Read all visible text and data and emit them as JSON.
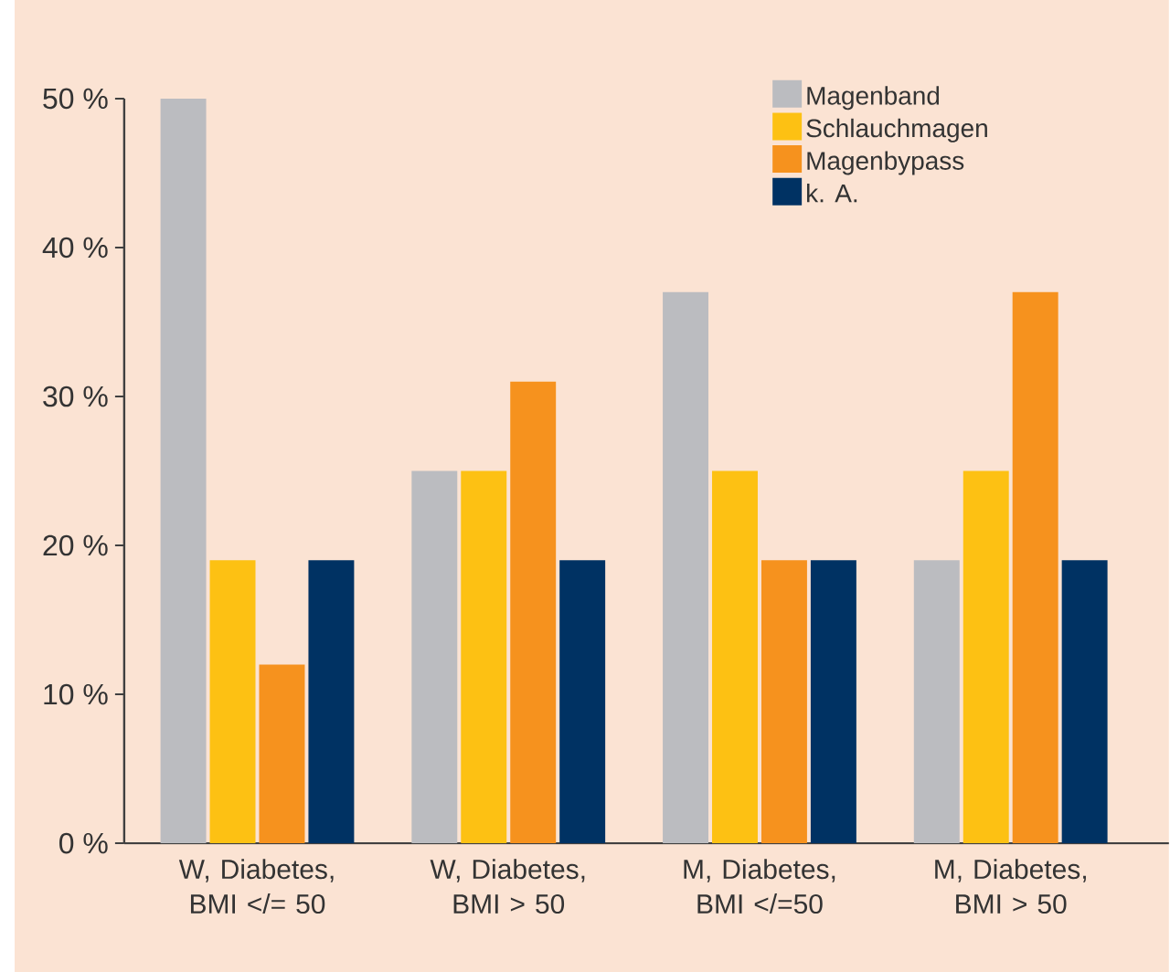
{
  "chart_data": {
    "type": "bar",
    "categories": [
      "W, Diabetes, BMI </= 50",
      "W, Diabetes, BMI > 50",
      "M, Diabetes, BMI </=50",
      "M, Diabetes, BMI > 50"
    ],
    "series": [
      {
        "name": "Magenband",
        "color": "#bbbcc0",
        "values": [
          50,
          25,
          37,
          19
        ]
      },
      {
        "name": "Schlauchmagen",
        "color": "#fdc113",
        "values": [
          19,
          25,
          25,
          25
        ]
      },
      {
        "name": "Magenbypass",
        "color": "#f6921e",
        "values": [
          12,
          31,
          19,
          37
        ]
      },
      {
        "name": "k. A.",
        "color": "#003263",
        "values": [
          19,
          19,
          19,
          19
        ]
      }
    ],
    "ylim": [
      0,
      50
    ],
    "yticks": [
      {
        "value": 0,
        "label": "0 %"
      },
      {
        "value": 10,
        "label": "10 %"
      },
      {
        "value": 20,
        "label": "20 %"
      },
      {
        "value": 30,
        "label": "30 %"
      },
      {
        "value": 40,
        "label": "40 %"
      },
      {
        "value": 50,
        "label": "50 %"
      }
    ],
    "legend": "top right"
  }
}
